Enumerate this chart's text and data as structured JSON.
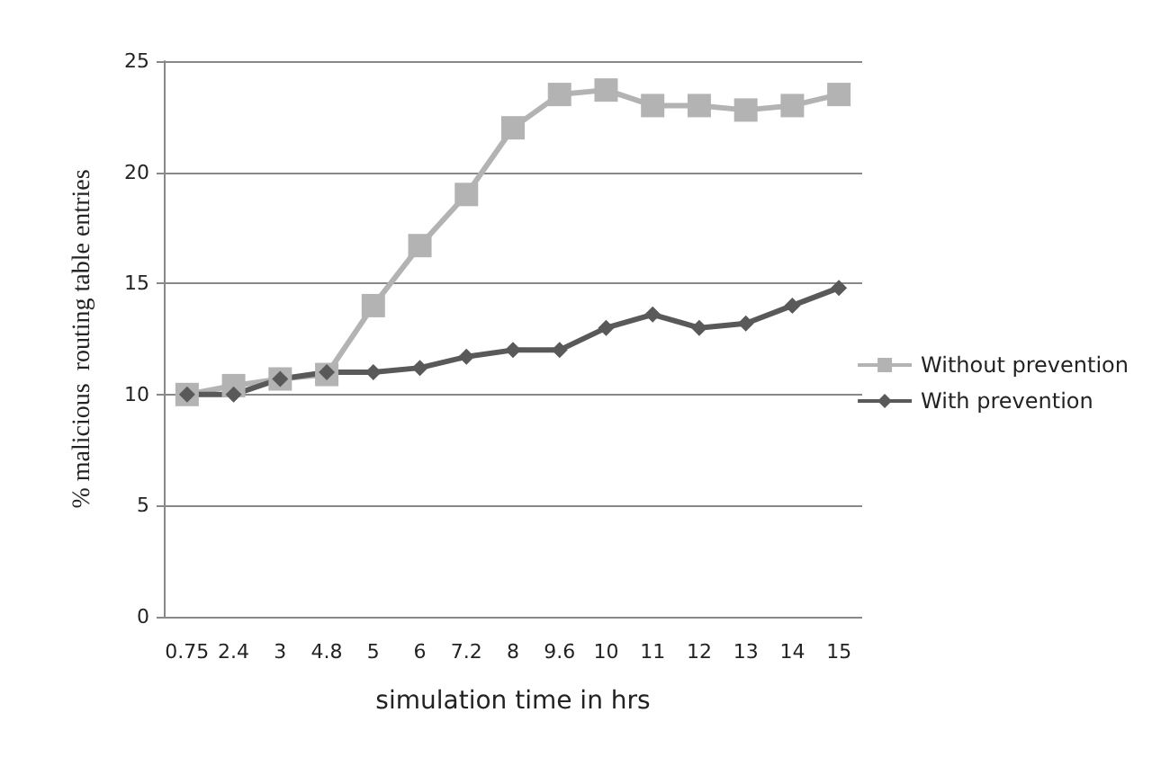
{
  "chart_data": {
    "type": "line",
    "xlabel": "simulation time in hrs",
    "ylabel": "% malicious  routing table entries",
    "categories": [
      "0.75",
      "2.4",
      "3",
      "4.8",
      "5",
      "6",
      "7.2",
      "8",
      "9.6",
      "10",
      "11",
      "12",
      "13",
      "14",
      "15"
    ],
    "series": [
      {
        "name": "Without prevention",
        "color": "#b3b3b3",
        "marker": "square",
        "values": [
          10,
          10.4,
          10.7,
          10.9,
          14,
          16.7,
          19,
          22,
          23.5,
          23.7,
          23,
          23,
          22.8,
          23,
          23.5
        ]
      },
      {
        "name": "With prevention",
        "color": "#595959",
        "marker": "diamond",
        "values": [
          10,
          10,
          10.7,
          11,
          11,
          11.2,
          11.7,
          12,
          12,
          13,
          13.6,
          13,
          13.2,
          14,
          14.8
        ]
      }
    ],
    "ylim": [
      0,
      25
    ],
    "yticks": [
      0,
      5,
      10,
      15,
      20,
      25
    ],
    "grid": "y",
    "legend": "right"
  }
}
